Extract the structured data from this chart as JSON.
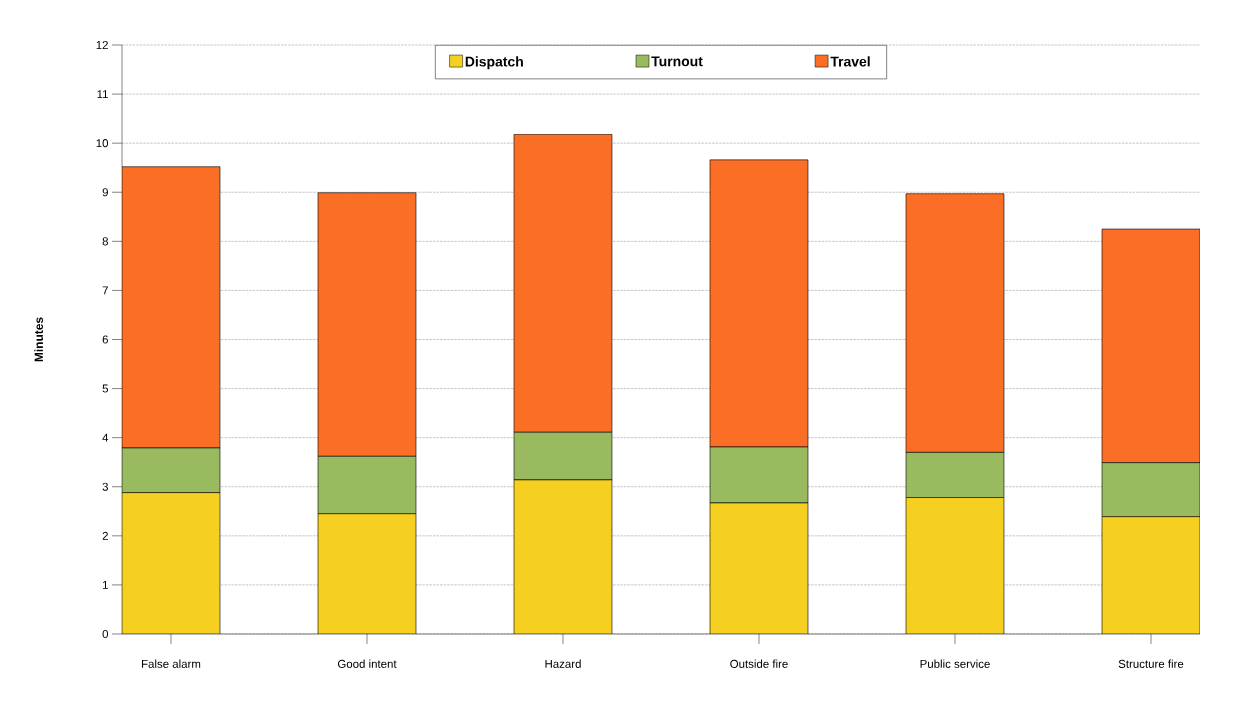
{
  "chart_data": {
    "type": "bar",
    "stacked": true,
    "ylabel": "Minutes",
    "categories": [
      "False alarm",
      "Good intent",
      "Hazard",
      "Outside fire",
      "Public service",
      "Structure fire"
    ],
    "series": [
      {
        "name": "Dispatch",
        "color": "#f5d020",
        "values": [
          2.88,
          2.45,
          3.14,
          2.67,
          2.78,
          2.39
        ]
      },
      {
        "name": "Turnout",
        "color": "#9aba60",
        "values": [
          0.91,
          1.17,
          0.97,
          1.14,
          0.92,
          1.1
        ]
      },
      {
        "name": "Travel",
        "color": "#fb6e26",
        "values": [
          5.73,
          5.37,
          6.07,
          5.85,
          5.27,
          4.76
        ]
      }
    ],
    "ylim": [
      0,
      12
    ],
    "yticks": [
      0,
      1,
      2,
      3,
      4,
      5,
      6,
      7,
      8,
      9,
      10,
      11,
      12
    ],
    "grid": "y",
    "legend": "top"
  }
}
